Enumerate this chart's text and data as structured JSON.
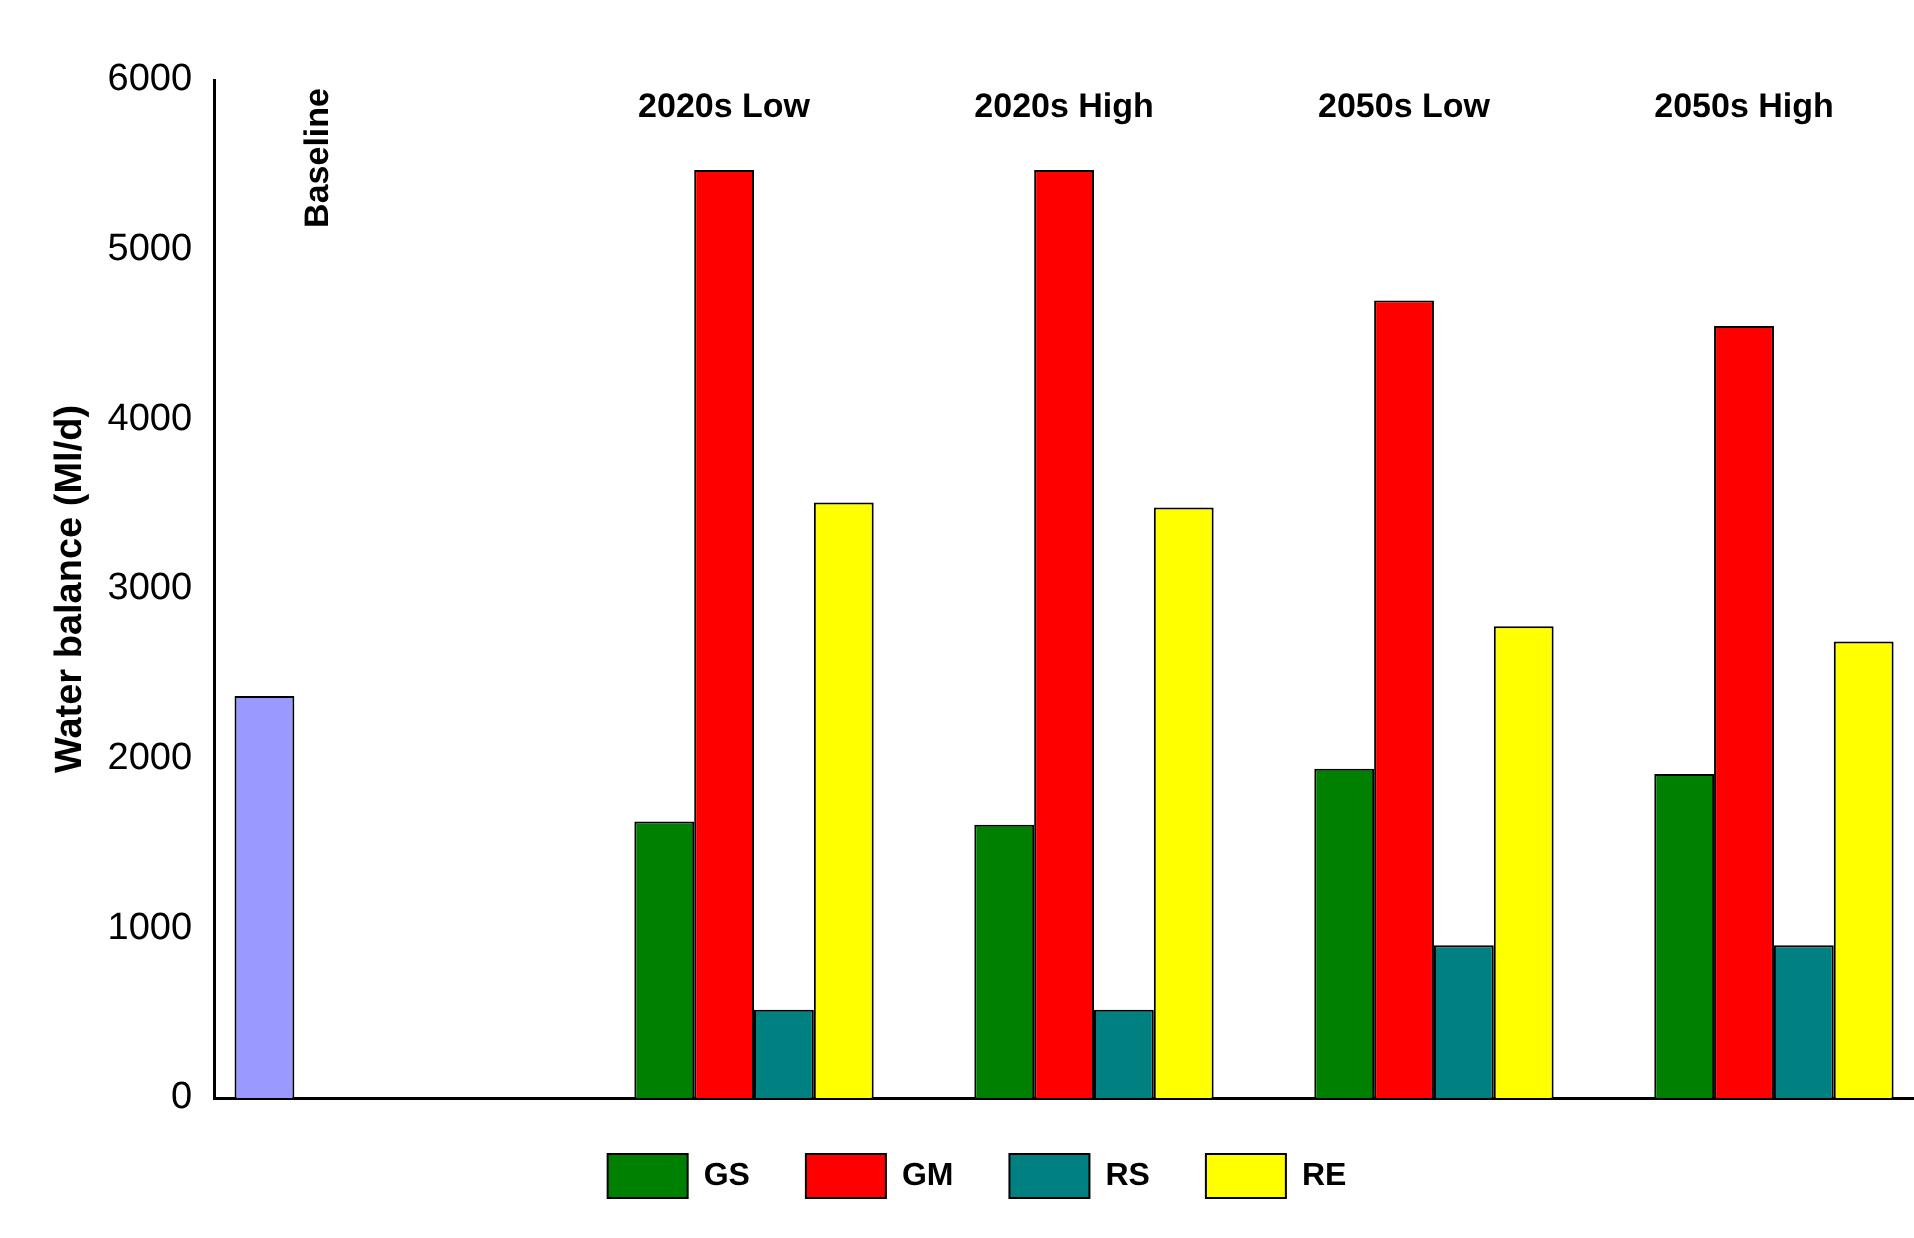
{
  "chart_data": {
    "type": "bar",
    "ylabel": "Water balance (Ml/d)",
    "categories": [
      "Baseline",
      "2020s Low",
      "2020s High",
      "2050s Low",
      "2050s High"
    ],
    "series": [
      {
        "color": "#9999ff",
        "values": [
          2370,
          null,
          null,
          null,
          null
        ]
      },
      {
        "name": "GS",
        "color": "#008000",
        "values": [
          null,
          1630,
          1610,
          1940,
          1910
        ]
      },
      {
        "name": "GM",
        "color": "#ff0000",
        "values": [
          null,
          5470,
          5470,
          4700,
          4550
        ]
      },
      {
        "name": "RS",
        "color": "#008080",
        "values": [
          null,
          520,
          520,
          900,
          900
        ]
      },
      {
        "name": "RE",
        "color": "#ffff00",
        "values": [
          null,
          3510,
          3480,
          2780,
          2690
        ]
      }
    ],
    "ylim": [
      0,
      6000
    ],
    "yticks": [
      0,
      1000,
      2000,
      3000,
      4000,
      5000,
      6000
    ],
    "grid": false,
    "legend": "bottom"
  }
}
